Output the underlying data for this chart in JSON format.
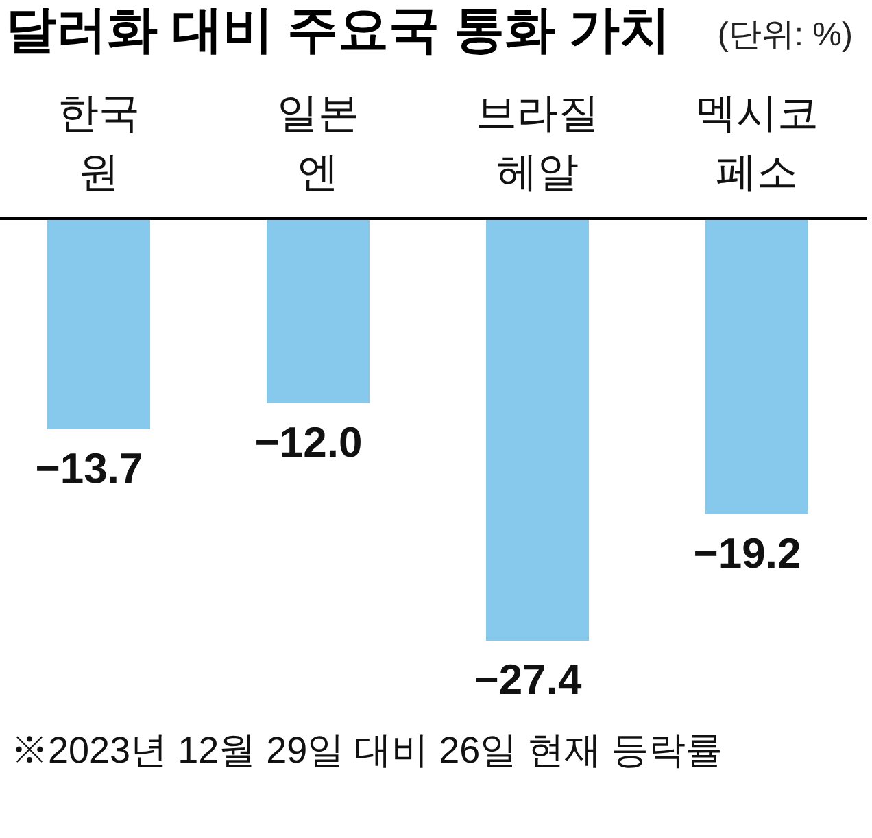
{
  "chart_data": {
    "type": "bar",
    "title": "달러화 대비 주요국 통화 가치",
    "subtitle": "(단위: %)",
    "categories": [
      "한국\n원",
      "일본\n엔",
      "브라질\n헤알",
      "멕시코\n페소"
    ],
    "values": [
      -13.7,
      -12.0,
      -27.4,
      -19.2
    ],
    "color": "#87c9ed",
    "value_labels": [
      "−13.7",
      "−12.0",
      "−27.4",
      "−19.2"
    ],
    "annotations": [
      "※2023년 12월 29일 대비 26일 현재 등락률"
    ]
  }
}
